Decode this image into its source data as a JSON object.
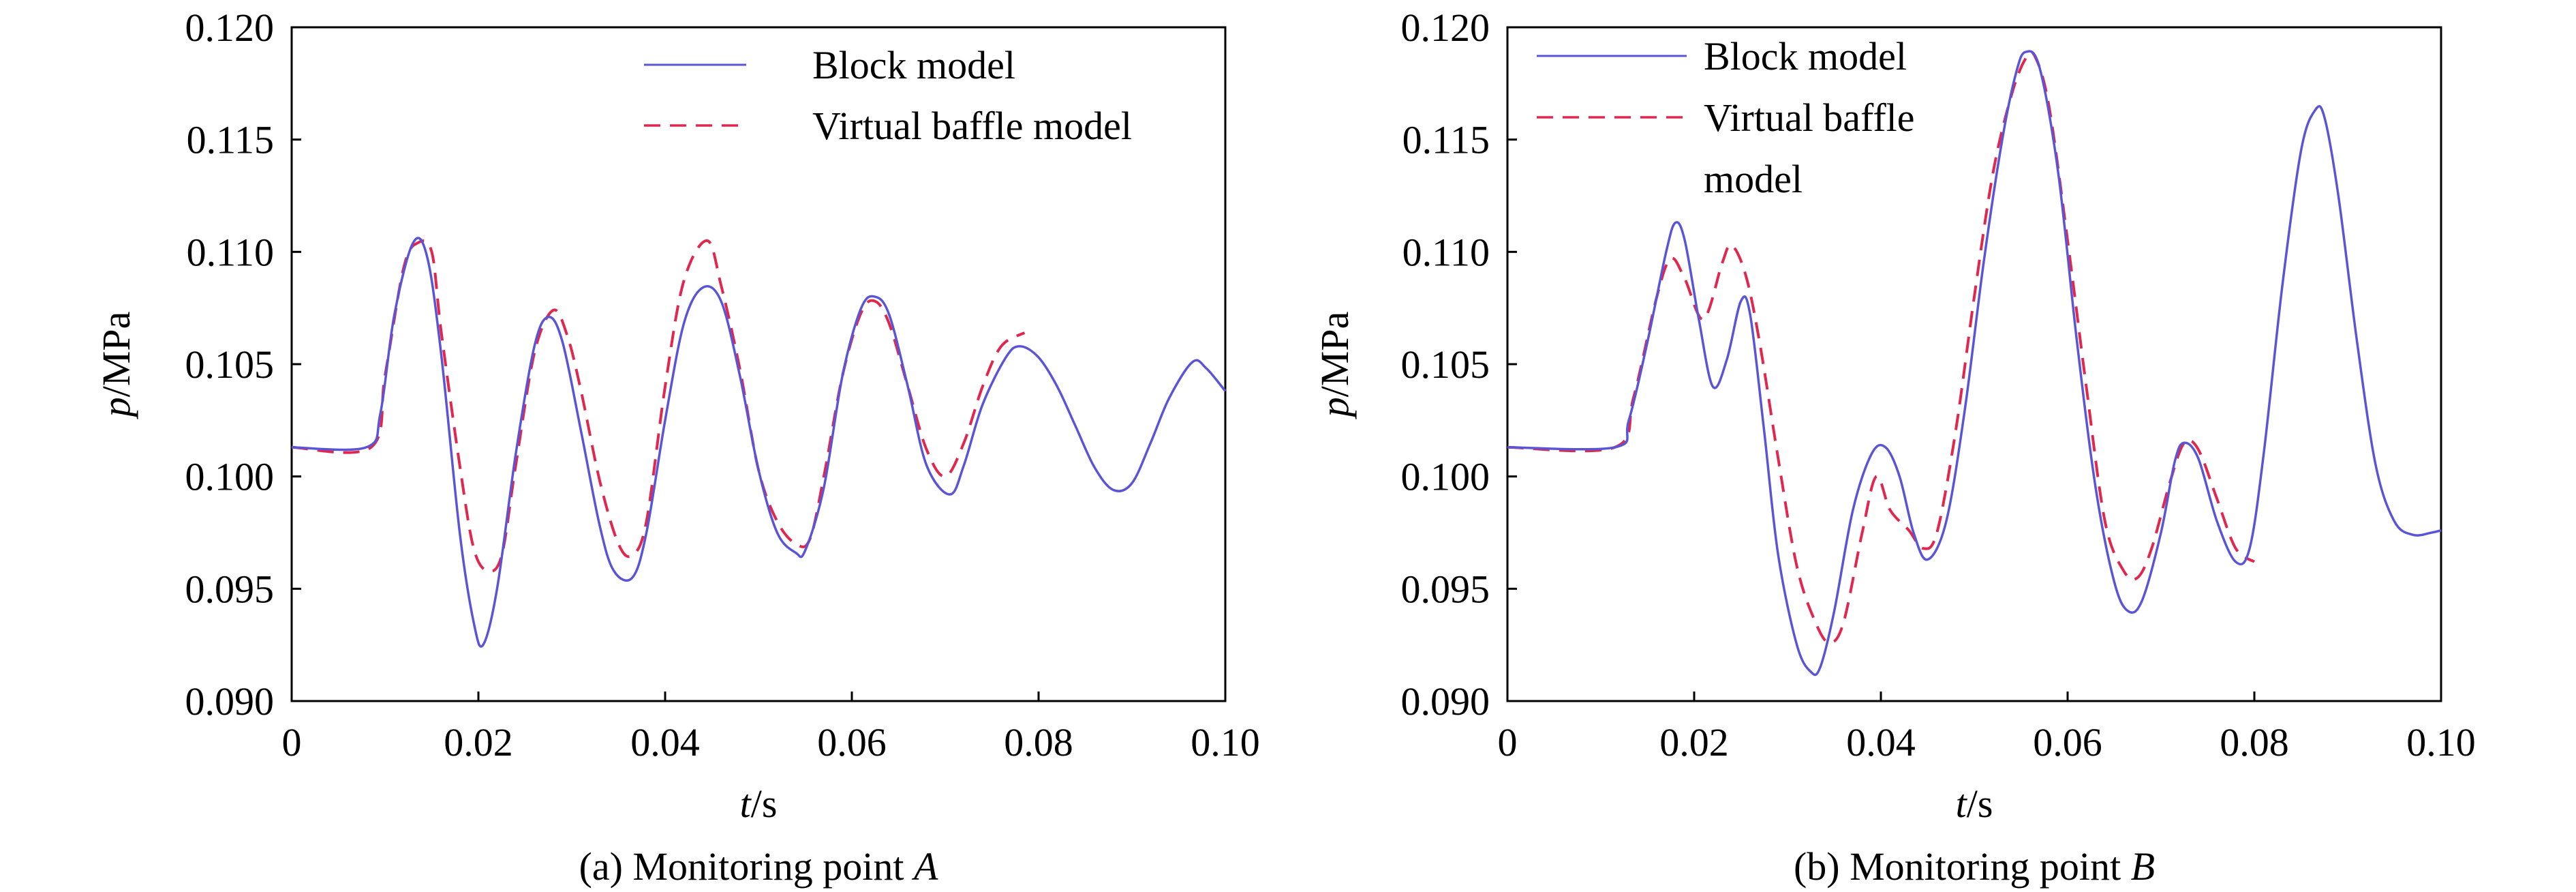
{
  "chart_data": [
    {
      "type": "line",
      "caption_prefix": "(a) Monitoring point ",
      "caption_var": "A",
      "xlabel_var": "t",
      "xlabel_unit": "/s",
      "ylabel_var": "p",
      "ylabel_unit": "/MPa",
      "xlim": [
        0,
        0.1
      ],
      "ylim": [
        0.09,
        0.12
      ],
      "xticks": [
        0,
        0.02,
        0.04,
        0.06,
        0.08,
        0.1
      ],
      "xtick_labels": [
        "0",
        "0.02",
        "0.04",
        "0.06",
        "0.08",
        "0.10"
      ],
      "yticks": [
        0.09,
        0.095,
        0.1,
        0.105,
        0.11,
        0.115,
        0.12
      ],
      "ytick_labels": [
        "0.090",
        "0.095",
        "0.100",
        "0.105",
        "0.110",
        "0.115",
        "0.120"
      ],
      "grid": false,
      "legend_position": "top-right",
      "series": [
        {
          "name": "Block model",
          "name_lines": [
            "Block model"
          ],
          "style": "solid",
          "color": "#5a55d6",
          "x": [
            0,
            0.008,
            0.0095,
            0.011,
            0.013,
            0.0145,
            0.016,
            0.018,
            0.0195,
            0.0205,
            0.022,
            0.024,
            0.026,
            0.0275,
            0.029,
            0.031,
            0.033,
            0.0345,
            0.0365,
            0.038,
            0.04,
            0.042,
            0.044,
            0.046,
            0.048,
            0.05,
            0.052,
            0.054,
            0.055,
            0.057,
            0.059,
            0.061,
            0.0625,
            0.064,
            0.066,
            0.068,
            0.0705,
            0.072,
            0.074,
            0.0765,
            0.078,
            0.08,
            0.082,
            0.084,
            0.086,
            0.088,
            0.09,
            0.092,
            0.094,
            0.0965,
            0.098,
            0.1
          ],
          "y": [
            0.1013,
            0.1013,
            0.1028,
            0.1072,
            0.1104,
            0.1098,
            0.1055,
            0.0975,
            0.0935,
            0.0925,
            0.095,
            0.101,
            0.1058,
            0.1071,
            0.106,
            0.102,
            0.0978,
            0.0958,
            0.0955,
            0.0975,
            0.1025,
            0.1068,
            0.1084,
            0.1078,
            0.1045,
            0.1003,
            0.0975,
            0.0966,
            0.0967,
            0.0995,
            0.1045,
            0.1075,
            0.108,
            0.1072,
            0.104,
            0.1005,
            0.0992,
            0.1005,
            0.1032,
            0.1053,
            0.1058,
            0.1053,
            0.104,
            0.1022,
            0.1004,
            0.0994,
            0.0997,
            0.1015,
            0.1035,
            0.1051,
            0.1048,
            0.1038
          ]
        },
        {
          "name": "Virtual baffle model",
          "name_lines": [
            "Virtual baffle model"
          ],
          "style": "dashed",
          "color": "#e0284f",
          "x": [
            0,
            0.0085,
            0.01,
            0.012,
            0.0135,
            0.015,
            0.016,
            0.018,
            0.0195,
            0.021,
            0.0225,
            0.024,
            0.026,
            0.028,
            0.0295,
            0.031,
            0.033,
            0.035,
            0.0365,
            0.038,
            0.04,
            0.042,
            0.0445,
            0.046,
            0.048,
            0.05,
            0.052,
            0.054,
            0.0555,
            0.057,
            0.059,
            0.061,
            0.0625,
            0.064,
            0.066,
            0.068,
            0.07,
            0.072,
            0.074,
            0.076,
            0.0785
          ],
          "y": [
            0.1013,
            0.1013,
            0.1045,
            0.1093,
            0.1104,
            0.11,
            0.1065,
            0.1005,
            0.0968,
            0.0958,
            0.0965,
            0.1005,
            0.1055,
            0.1074,
            0.1063,
            0.1038,
            0.0998,
            0.097,
            0.0965,
            0.098,
            0.104,
            0.1087,
            0.1105,
            0.1085,
            0.1048,
            0.1003,
            0.098,
            0.097,
            0.0972,
            0.1,
            0.1045,
            0.1073,
            0.1078,
            0.1068,
            0.104,
            0.1012,
            0.1,
            0.1015,
            0.104,
            0.1058,
            0.1064
          ]
        }
      ]
    },
    {
      "type": "line",
      "caption_prefix": "(b) Monitoring point ",
      "caption_var": "B",
      "xlabel_var": "t",
      "xlabel_unit": "/s",
      "ylabel_var": "p",
      "ylabel_unit": "/MPa",
      "xlim": [
        0,
        0.1
      ],
      "ylim": [
        0.09,
        0.12
      ],
      "xticks": [
        0,
        0.02,
        0.04,
        0.06,
        0.08,
        0.1
      ],
      "xtick_labels": [
        "0",
        "0.02",
        "0.04",
        "0.06",
        "0.08",
        "0.10"
      ],
      "yticks": [
        0.09,
        0.095,
        0.1,
        0.105,
        0.11,
        0.115,
        0.12
      ],
      "ytick_labels": [
        "0.090",
        "0.095",
        "0.100",
        "0.105",
        "0.110",
        "0.115",
        "0.120"
      ],
      "grid": false,
      "legend_position": "top-left",
      "series": [
        {
          "name": "Block model",
          "name_lines": [
            "Block model"
          ],
          "style": "solid",
          "color": "#5a55d6",
          "x": [
            0,
            0.0115,
            0.013,
            0.015,
            0.017,
            0.018,
            0.019,
            0.0205,
            0.022,
            0.0235,
            0.025,
            0.026,
            0.0275,
            0.029,
            0.031,
            0.0325,
            0.0335,
            0.035,
            0.037,
            0.039,
            0.0405,
            0.042,
            0.0435,
            0.045,
            0.047,
            0.049,
            0.051,
            0.053,
            0.0545,
            0.0555,
            0.057,
            0.059,
            0.061,
            0.063,
            0.065,
            0.0665,
            0.068,
            0.07,
            0.0715,
            0.0725,
            0.074,
            0.076,
            0.078,
            0.0795,
            0.081,
            0.083,
            0.085,
            0.0865,
            0.0875,
            0.089,
            0.091,
            0.093,
            0.095,
            0.097,
            0.099,
            0.1
          ],
          "y": [
            0.1013,
            0.1013,
            0.1025,
            0.106,
            0.11,
            0.1113,
            0.1105,
            0.107,
            0.104,
            0.1052,
            0.1078,
            0.1072,
            0.102,
            0.0965,
            0.0925,
            0.0913,
            0.0915,
            0.094,
            0.0985,
            0.101,
            0.1013,
            0.1,
            0.0975,
            0.0963,
            0.098,
            0.103,
            0.1095,
            0.115,
            0.118,
            0.1189,
            0.1182,
            0.1135,
            0.106,
            0.0995,
            0.0953,
            0.094,
            0.0945,
            0.0975,
            0.1007,
            0.1015,
            0.1008,
            0.098,
            0.0962,
            0.0968,
            0.101,
            0.1085,
            0.1145,
            0.1163,
            0.116,
            0.1125,
            0.106,
            0.1005,
            0.098,
            0.0974,
            0.0975,
            0.0976
          ]
        },
        {
          "name": "Virtual baffle model",
          "name_lines": [
            "Virtual baffle model",
            "model"
          ],
          "line1_text": "Virtual baffle",
          "style": "dashed",
          "color": "#e0284f",
          "x": [
            0,
            0.0115,
            0.0135,
            0.016,
            0.0175,
            0.019,
            0.021,
            0.023,
            0.024,
            0.0255,
            0.027,
            0.029,
            0.031,
            0.033,
            0.0345,
            0.036,
            0.038,
            0.0395,
            0.041,
            0.043,
            0.0445,
            0.046,
            0.048,
            0.05,
            0.052,
            0.054,
            0.0555,
            0.0565,
            0.058,
            0.06,
            0.062,
            0.064,
            0.066,
            0.0675,
            0.069,
            0.071,
            0.0725,
            0.074,
            0.076,
            0.078,
            0.08
          ],
          "y": [
            0.1013,
            0.1013,
            0.1035,
            0.108,
            0.1097,
            0.1088,
            0.107,
            0.1095,
            0.1103,
            0.109,
            0.106,
            0.1008,
            0.096,
            0.0935,
            0.0926,
            0.0935,
            0.0975,
            0.1,
            0.0985,
            0.0976,
            0.0968,
            0.0975,
            0.102,
            0.108,
            0.1135,
            0.117,
            0.1186,
            0.1187,
            0.1165,
            0.1105,
            0.104,
            0.098,
            0.0958,
            0.0955,
            0.0968,
            0.0998,
            0.1015,
            0.1012,
            0.099,
            0.0968,
            0.0962
          ]
        }
      ]
    }
  ]
}
